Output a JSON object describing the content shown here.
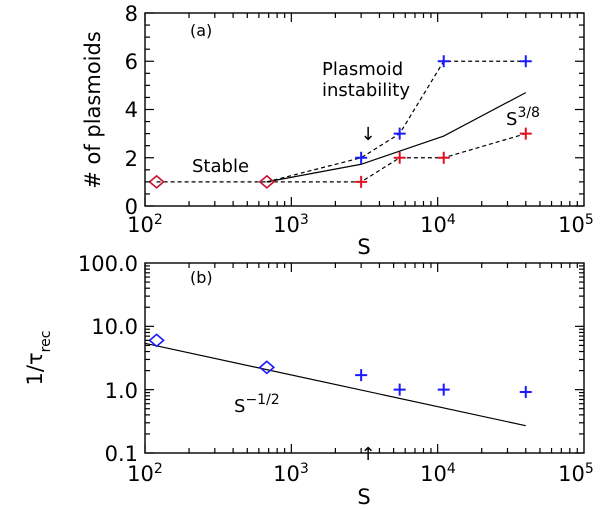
{
  "chart_data": [
    {
      "type": "line",
      "panel_label": "(a)",
      "xlabel": "S",
      "ylabel": "# of plasmoids",
      "x_scale": "log",
      "xlim": [
        100,
        100000
      ],
      "ylim": [
        0,
        8
      ],
      "x_ticks": [
        100,
        1000,
        10000,
        100000
      ],
      "x_tick_labels": [
        {
          "base": "10",
          "exp": "2"
        },
        {
          "base": "10",
          "exp": "3"
        },
        {
          "base": "10",
          "exp": "4"
        },
        {
          "base": "10",
          "exp": "5"
        }
      ],
      "y_ticks": [
        0,
        2,
        4,
        6,
        8
      ],
      "y_tick_labels": [
        "0",
        "2",
        "4",
        "6",
        "8"
      ],
      "series": [
        {
          "marker": "diamond",
          "line": "none",
          "color": "#c8102e",
          "x": [
            120,
            680
          ],
          "y": [
            1,
            1
          ]
        },
        {
          "marker": "none",
          "line": "dashed",
          "color": "#000000",
          "x": [
            120,
            680
          ],
          "y": [
            1,
            1
          ]
        },
        {
          "marker": "plus",
          "line": "dashed",
          "color": "#1a1aff",
          "x": [
            3000,
            5500,
            11000,
            40000
          ],
          "y": [
            2,
            3,
            6,
            6
          ],
          "line_from": [
            680,
            1
          ]
        },
        {
          "marker": "plus",
          "line": "dashed",
          "color": "#e0101e",
          "x": [
            3000,
            5500,
            11000,
            40000
          ],
          "y": [
            1,
            2,
            2,
            3
          ],
          "line_from": [
            680,
            1
          ]
        },
        {
          "marker": "none",
          "line": "solid",
          "color": "#000000",
          "x": [
            680,
            3000,
            11000,
            40000
          ],
          "y": [
            1,
            1.73,
            2.9,
            4.7
          ]
        }
      ],
      "annotations": {
        "stable": "Stable",
        "plasmoid_line1": "Plasmoid",
        "plasmoid_line2": "instability",
        "scaling_base": "S",
        "scaling_exp": "3/8",
        "arrow_symbol": "↓"
      }
    },
    {
      "type": "scatter",
      "panel_label": "(b)",
      "xlabel": "S",
      "ylabel_base": "1/τ",
      "ylabel_sub": "rec",
      "x_scale": "log",
      "y_scale": "log",
      "xlim": [
        100,
        100000
      ],
      "ylim": [
        0.1,
        100
      ],
      "x_ticks": [
        100,
        1000,
        10000,
        100000
      ],
      "x_tick_labels": [
        {
          "base": "10",
          "exp": "2"
        },
        {
          "base": "10",
          "exp": "3"
        },
        {
          "base": "10",
          "exp": "4"
        },
        {
          "base": "10",
          "exp": "5"
        }
      ],
      "y_ticks": [
        0.1,
        1,
        10,
        100
      ],
      "y_tick_labels": [
        "0.1",
        "1.0",
        "10.0",
        "100.0"
      ],
      "series": [
        {
          "marker": "diamond",
          "line": "none",
          "color": "#1a1aff",
          "x": [
            120,
            680
          ],
          "y": [
            6,
            2.25
          ]
        },
        {
          "marker": "plus",
          "line": "none",
          "color": "#1a1aff",
          "x": [
            3000,
            5500,
            11000,
            40000
          ],
          "y": [
            1.7,
            1.0,
            1.0,
            0.92
          ]
        },
        {
          "marker": "none",
          "line": "solid",
          "color": "#000000",
          "x": [
            100,
            40000
          ],
          "y": [
            5.4,
            0.27
          ]
        }
      ],
      "annotations": {
        "scaling_base": "S",
        "scaling_exp": "−1/2",
        "arrow_symbol": "↑"
      }
    }
  ]
}
